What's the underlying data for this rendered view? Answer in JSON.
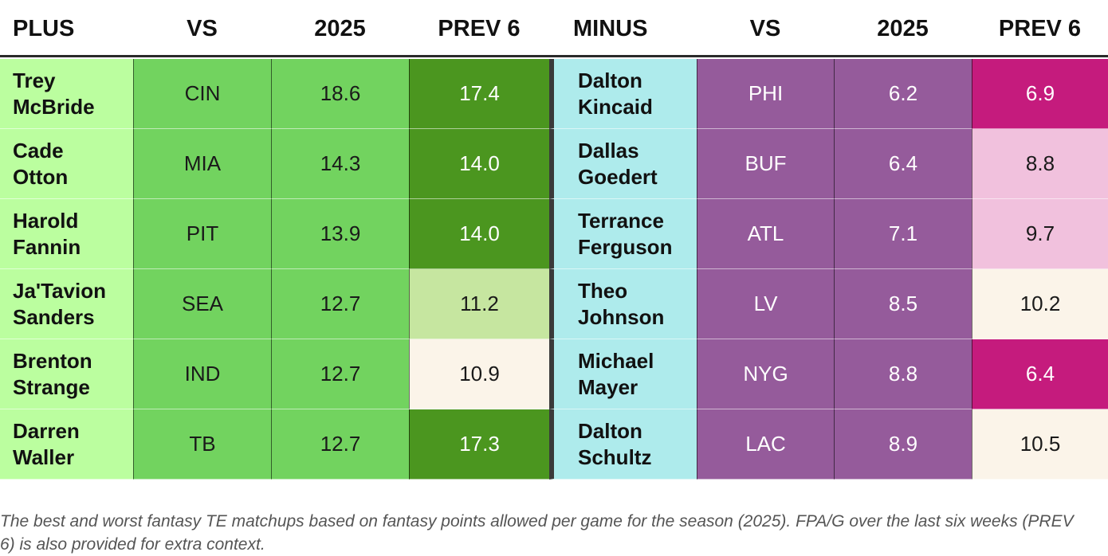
{
  "headers": {
    "plus": "PLUS",
    "vs_plus": "VS",
    "year_plus": "2025",
    "prev_plus": "PREV 6",
    "minus": "MINUS",
    "vs_minus": "VS",
    "year_minus": "2025",
    "prev_minus": "PREV 6"
  },
  "chart_data": {
    "type": "table",
    "columns": [
      "PLUS",
      "VS",
      "2025",
      "PREV 6",
      "MINUS",
      "VS",
      "2025",
      "PREV 6"
    ],
    "rows": [
      {
        "plus": {
          "player": "Trey\nMcBride",
          "vs": "CIN",
          "y2025": "18.6",
          "prev6": "17.4",
          "prev6_color": "#4b961f"
        },
        "minus": {
          "player": "Dalton\nKincaid",
          "vs": "PHI",
          "y2025": "6.2",
          "prev6": "6.9",
          "prev6_color": "#c51b7d"
        }
      },
      {
        "plus": {
          "player": "Cade\nOtton",
          "vs": "MIA",
          "y2025": "14.3",
          "prev6": "14.0",
          "prev6_color": "#4b961f"
        },
        "minus": {
          "player": "Dallas\nGoedert",
          "vs": "BUF",
          "y2025": "6.4",
          "prev6": "8.8",
          "prev6_color": "#f1c1dd"
        }
      },
      {
        "plus": {
          "player": "Harold\nFannin",
          "vs": "PIT",
          "y2025": "13.9",
          "prev6": "14.0",
          "prev6_color": "#4b961f"
        },
        "minus": {
          "player": "Terrance\nFerguson",
          "vs": "ATL",
          "y2025": "7.1",
          "prev6": "9.7",
          "prev6_color": "#f1c1dd"
        }
      },
      {
        "plus": {
          "player": "Ja'Tavion\nSanders",
          "vs": "SEA",
          "y2025": "12.7",
          "prev6": "11.2",
          "prev6_color": "#c6e6a0"
        },
        "minus": {
          "player": "Theo\nJohnson",
          "vs": "LV",
          "y2025": "8.5",
          "prev6": "10.2",
          "prev6_color": "#fbf4e9"
        }
      },
      {
        "plus": {
          "player": "Brenton\nStrange",
          "vs": "IND",
          "y2025": "12.7",
          "prev6": "10.9",
          "prev6_color": "#fbf4e9"
        },
        "minus": {
          "player": "Michael\nMayer",
          "vs": "NYG",
          "y2025": "8.8",
          "prev6": "6.4",
          "prev6_color": "#c51b7d"
        }
      },
      {
        "plus": {
          "player": "Darren\nWaller",
          "vs": "TB",
          "y2025": "12.7",
          "prev6": "17.3",
          "prev6_color": "#4b961f"
        },
        "minus": {
          "player": "Dalton\nSchultz",
          "vs": "LAC",
          "y2025": "8.9",
          "prev6": "10.5",
          "prev6_color": "#fbf4e9"
        }
      }
    ]
  },
  "colors": {
    "plus_name": "#bbfe9f",
    "plus_green": "#72d35f",
    "minus_name": "#aeebec",
    "minus_purple": "#955b9b",
    "header_rule": "#2a2a2a"
  },
  "caption": "The best and worst fantasy TE matchups based on fantasy points allowed per game for the season (2025). FPA/G over the last six weeks (PREV 6) is also provided for extra context."
}
